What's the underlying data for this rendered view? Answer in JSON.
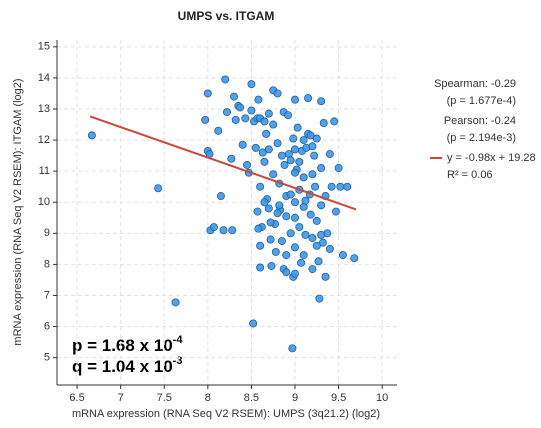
{
  "chart_data": {
    "type": "scatter",
    "title": "UMPS vs. ITGAM",
    "x_label": "mRNA expression (RNA Seq V2 RSEM): UMPS (3q21.2) (log2)",
    "y_label": "mRNA expression (RNA Seq V2 RSEM): ITGAM (log2)",
    "xlim": [
      6.27,
      10.17
    ],
    "ylim": [
      4.12,
      15.22
    ],
    "xticks": [
      6.5,
      7,
      7.5,
      8,
      8.5,
      9,
      9.5,
      10
    ],
    "yticks": [
      5,
      6,
      7,
      8,
      9,
      10,
      11,
      12,
      13,
      14,
      15
    ],
    "grid": true,
    "color": "#3d97e8",
    "x": [
      6.67,
      7.43,
      7.63,
      7.97,
      8.0,
      8.02,
      8.0,
      8.03,
      8.07,
      8.12,
      8.15,
      8.18,
      8.2,
      8.22,
      8.28,
      8.27,
      8.3,
      8.32,
      8.35,
      8.37,
      8.4,
      8.43,
      8.45,
      8.47,
      8.5,
      8.5,
      8.52,
      8.53,
      8.55,
      8.57,
      8.57,
      8.58,
      8.6,
      8.6,
      8.6,
      8.62,
      8.6,
      8.63,
      8.65,
      8.67,
      8.65,
      8.68,
      8.7,
      8.7,
      8.72,
      8.73,
      8.75,
      8.75,
      8.75,
      8.77,
      8.78,
      8.8,
      8.8,
      8.82,
      8.83,
      8.85,
      8.87,
      8.87,
      8.88,
      8.9,
      8.9,
      8.9,
      8.92,
      8.93,
      8.95,
      8.95,
      8.97,
      8.98,
      8.98,
      9.0,
      9.0,
      9.0,
      9.0,
      9.0,
      9.02,
      9.03,
      9.05,
      9.05,
      9.07,
      9.08,
      9.1,
      9.1,
      9.1,
      9.12,
      9.13,
      9.15,
      9.15,
      9.17,
      9.18,
      9.2,
      9.2,
      9.22,
      9.23,
      9.25,
      9.25,
      9.27,
      9.28,
      9.3,
      9.3,
      9.3,
      9.32,
      9.33,
      9.35,
      9.37,
      9.4,
      9.42,
      9.45,
      9.47,
      9.5,
      9.52,
      9.55,
      9.6,
      9.68,
      8.65,
      8.72,
      8.8,
      8.85,
      8.95,
      9.05,
      9.12,
      9.2,
      9.18,
      8.58,
      8.9,
      9.0,
      9.3,
      9.35,
      9.1,
      9.25,
      8.7,
      9.0,
      9.2,
      8.82,
      9.4
    ],
    "y": [
      12.15,
      10.45,
      6.78,
      12.65,
      11.65,
      11.55,
      13.5,
      9.1,
      9.2,
      12.3,
      10.2,
      9.1,
      13.95,
      12.9,
      9.1,
      11.4,
      13.4,
      12.65,
      13.1,
      13.05,
      11.85,
      12.7,
      11.2,
      10.95,
      13.8,
      12.95,
      6.1,
      12.6,
      11.75,
      12.7,
      9.7,
      13.3,
      12.7,
      10.5,
      8.6,
      9.2,
      7.9,
      11.6,
      12.6,
      12.2,
      11.3,
      10.1,
      11.7,
      9.8,
      8.8,
      7.95,
      13.6,
      12.5,
      10.9,
      9.3,
      8.4,
      13.5,
      11.9,
      10.6,
      9.75,
      8.75,
      7.85,
      12.9,
      11.2,
      10.2,
      9.55,
      8.3,
      12.8,
      11.55,
      10.25,
      9.0,
      5.3,
      7.6,
      12.05,
      13.3,
      11.7,
      10.0,
      9.5,
      8.55,
      11.05,
      12.4,
      10.4,
      9.2,
      8.05,
      11.65,
      12.0,
      10.8,
      9.85,
      8.95,
      11.75,
      13.35,
      12.2,
      10.25,
      9.6,
      8.85,
      7.85,
      11.5,
      10.5,
      12.05,
      9.4,
      8.1,
      6.9,
      13.25,
      11.1,
      9.9,
      8.7,
      12.55,
      10.2,
      9.0,
      11.55,
      10.5,
      12.6,
      9.7,
      11.1,
      10.5,
      8.3,
      10.5,
      8.2,
      10.0,
      9.35,
      9.65,
      11.5,
      11.35,
      11.3,
      10.05,
      10.9,
      12.15,
      9.15,
      7.75,
      7.7,
      8.95,
      7.6,
      8.3,
      8.6,
      12.85,
      10.95,
      11.8,
      9.9,
      8.5
    ],
    "trend_line": {
      "name": "y = -0.98x + 19.28",
      "color": "#c9473b",
      "x": [
        6.65,
        9.7
      ],
      "y": [
        12.76,
        9.77
      ]
    },
    "annotations": [
      "Spearman: -0.29",
      "(p = 1.677e-4)",
      "Pearson: -0.24",
      "(p = 2.194e-3)",
      "R² = 0.06"
    ],
    "p_text": {
      "text": "p = 1.68 x 10",
      "sup": "-4"
    },
    "q_text": {
      "text": "q = 1.04 x 10",
      "sup": "-3"
    }
  }
}
